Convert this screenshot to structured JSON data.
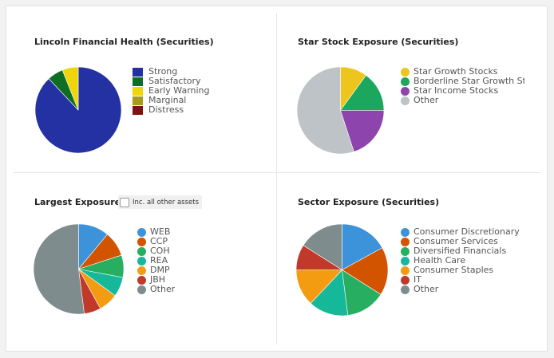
{
  "toggle": {
    "label": "Inc. all other assets",
    "checked": false
  },
  "chart_data": [
    {
      "type": "pie",
      "title": "Lincoln Financial Health (Securities)",
      "legend_marker": "square",
      "categories": [
        "Strong",
        "Satisfactory",
        "Early Warning",
        "Marginal",
        "Distress"
      ],
      "values": [
        88,
        6,
        6,
        0,
        0
      ],
      "colors": [
        "#2431a3",
        "#0e6e24",
        "#eed60b",
        "#a89a1a",
        "#821010"
      ]
    },
    {
      "type": "pie",
      "title": "Star Stock Exposure (Securities)",
      "legend_marker": "circle",
      "categories": [
        "Star Growth Stocks",
        "Borderline Star Growth Stocks",
        "Star Income Stocks",
        "Other"
      ],
      "values": [
        10,
        15,
        20,
        55
      ],
      "colors": [
        "#eec51d",
        "#1ba75e",
        "#8e44ad",
        "#bdc3c7"
      ]
    },
    {
      "type": "pie",
      "title": "Largest Exposure",
      "legend_marker": "circle",
      "categories": [
        "WEB",
        "CCP",
        "COH",
        "REA",
        "DMP",
        "JBH",
        "Other"
      ],
      "values": [
        11,
        9,
        8,
        7,
        7,
        6,
        52
      ],
      "colors": [
        "#3d93d9",
        "#d35400",
        "#27ae60",
        "#16b89a",
        "#f39c12",
        "#c0392b",
        "#7f8c8d"
      ]
    },
    {
      "type": "pie",
      "title": "Sector Exposure (Securities)",
      "legend_marker": "circle",
      "categories": [
        "Consumer Discretionary",
        "Consumer Services",
        "Diversified Financials",
        "Health Care",
        "Consumer Staples",
        "IT",
        "Other"
      ],
      "values": [
        17,
        17,
        14,
        14,
        13,
        9,
        16
      ],
      "colors": [
        "#3d93d9",
        "#d35400",
        "#27ae60",
        "#16b89a",
        "#f39c12",
        "#c0392b",
        "#7f8c8d"
      ]
    }
  ]
}
